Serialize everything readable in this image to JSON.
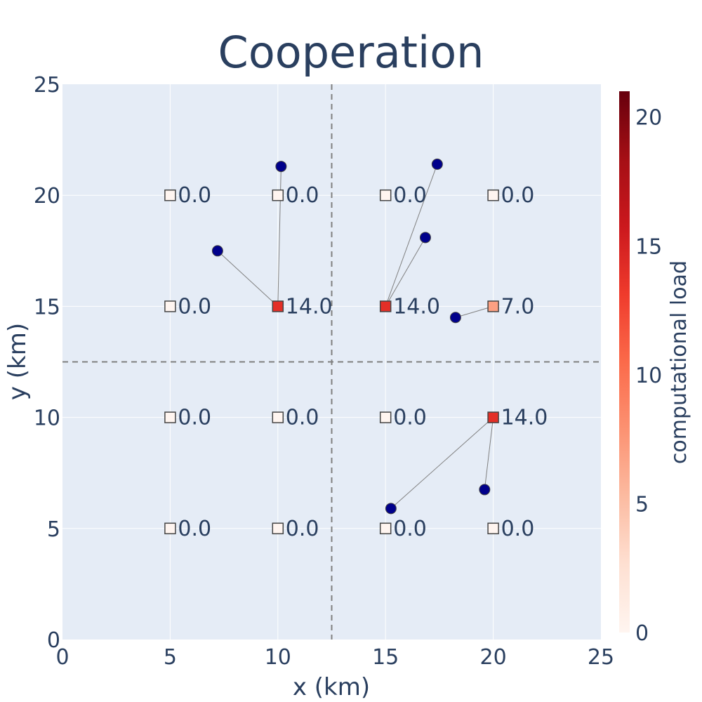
{
  "chart_data": {
    "type": "scatter",
    "title": "Cooperation",
    "xlabel": "x (km)",
    "ylabel": "y (km)",
    "xlim": [
      0,
      25
    ],
    "ylim": [
      0,
      25
    ],
    "xticks": [
      "0",
      "5",
      "10",
      "15",
      "20",
      "25"
    ],
    "yticks": [
      "0",
      "5",
      "10",
      "15",
      "20",
      "25"
    ],
    "grid": true,
    "divider_lines": {
      "x": 12.5,
      "y": 12.5,
      "style": "dashed"
    },
    "base_stations": [
      {
        "x": 5,
        "y": 20,
        "load": 0,
        "label": "0.0"
      },
      {
        "x": 10,
        "y": 20,
        "load": 0,
        "label": "0.0"
      },
      {
        "x": 15,
        "y": 20,
        "load": 0,
        "label": "0.0"
      },
      {
        "x": 20,
        "y": 20,
        "load": 0,
        "label": "0.0"
      },
      {
        "x": 5,
        "y": 15,
        "load": 0,
        "label": "0.0"
      },
      {
        "x": 10,
        "y": 15,
        "load": 14,
        "label": "14.0"
      },
      {
        "x": 15,
        "y": 15,
        "load": 14,
        "label": "14.0"
      },
      {
        "x": 20,
        "y": 15,
        "load": 7,
        "label": "7.0"
      },
      {
        "x": 5,
        "y": 10,
        "load": 0,
        "label": "0.0"
      },
      {
        "x": 10,
        "y": 10,
        "load": 0,
        "label": "0.0"
      },
      {
        "x": 15,
        "y": 10,
        "load": 0,
        "label": "0.0"
      },
      {
        "x": 20,
        "y": 10,
        "load": 14,
        "label": "14.0"
      },
      {
        "x": 5,
        "y": 5,
        "load": 0,
        "label": "0.0"
      },
      {
        "x": 10,
        "y": 5,
        "load": 0,
        "label": "0.0"
      },
      {
        "x": 15,
        "y": 5,
        "load": 0,
        "label": "0.0"
      },
      {
        "x": 20,
        "y": 5,
        "load": 0,
        "label": "0.0"
      }
    ],
    "users": [
      {
        "x": 10.15,
        "y": 21.3,
        "bs": [
          10,
          15
        ]
      },
      {
        "x": 7.2,
        "y": 17.5,
        "bs": [
          10,
          15
        ]
      },
      {
        "x": 17.4,
        "y": 21.4,
        "bs": [
          15,
          15
        ]
      },
      {
        "x": 16.85,
        "y": 18.1,
        "bs": [
          15,
          15
        ]
      },
      {
        "x": 18.25,
        "y": 14.5,
        "bs": [
          20,
          15
        ]
      },
      {
        "x": 15.25,
        "y": 5.9,
        "bs": [
          20,
          10
        ]
      },
      {
        "x": 19.6,
        "y": 6.75,
        "bs": [
          20,
          10
        ]
      }
    ],
    "colorbar": {
      "title": "computational load",
      "range": [
        0,
        21
      ],
      "ticks": [
        "0",
        "5",
        "10",
        "15",
        "20"
      ],
      "colorscale": "Reds"
    },
    "colors": {
      "plot_bg": "#e5ecf6",
      "grid": "#ffffff",
      "user_fill": "#00008b",
      "link": "#808080",
      "divider": "#7f7f7f",
      "text": "#2a3f5f"
    }
  }
}
